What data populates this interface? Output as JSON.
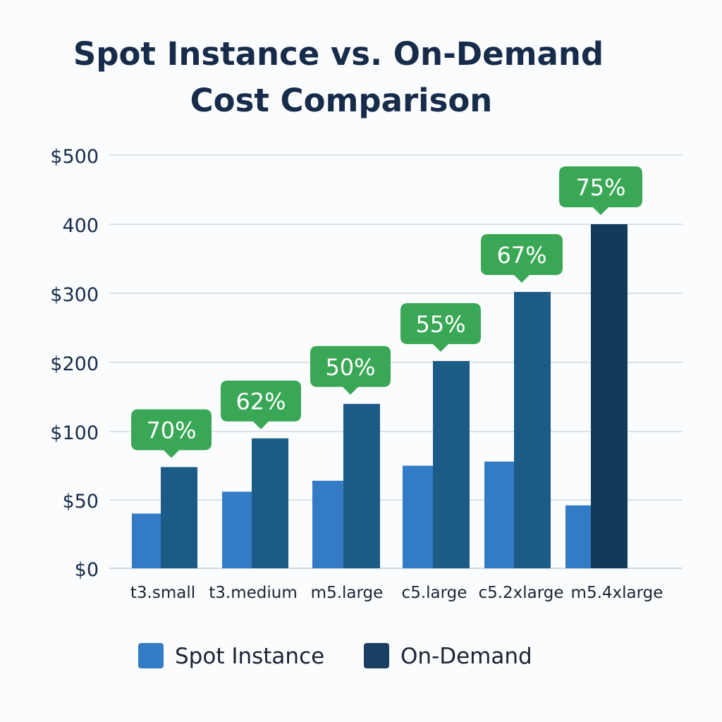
{
  "chart_data": {
    "type": "bar",
    "title_lines": [
      "Spot Instance vs. On-Demand",
      "Cost Comparison"
    ],
    "xlabel": "",
    "ylabel": "",
    "categories": [
      "t3.small",
      "t3.medium",
      "m5.large",
      "c5.large",
      "c5.2xlarge",
      "m5.4xlarge"
    ],
    "y_ticks": [
      {
        "value": 0,
        "label": "$0"
      },
      {
        "value": 50,
        "label": "$50"
      },
      {
        "value": 100,
        "label": "$100"
      },
      {
        "value": 200,
        "label": "$200"
      },
      {
        "value": 300,
        "label": "$300"
      },
      {
        "value": 400,
        "label": "400"
      },
      {
        "value": 500,
        "label": "$500"
      }
    ],
    "grid": true,
    "series": [
      {
        "name": "Spot Instance",
        "color": "#337bc4",
        "values": [
          40,
          56,
          64,
          75,
          78,
          46
        ]
      },
      {
        "name": "On-Demand",
        "color": "#1c5b86",
        "values": [
          74,
          95,
          140,
          202,
          302,
          400
        ]
      }
    ],
    "on_demand_last_color": "#143a5a",
    "savings_labels": [
      "70%",
      "62%",
      "50%",
      "55%",
      "67%",
      "75%"
    ],
    "savings_color": "#3aa756",
    "grid_color": "#cfd9e4",
    "legend": {
      "position": "bottom-center",
      "items": [
        "Spot Instance",
        "On-Demand"
      ],
      "colors": [
        "#337bc4",
        "#183f61"
      ]
    }
  }
}
